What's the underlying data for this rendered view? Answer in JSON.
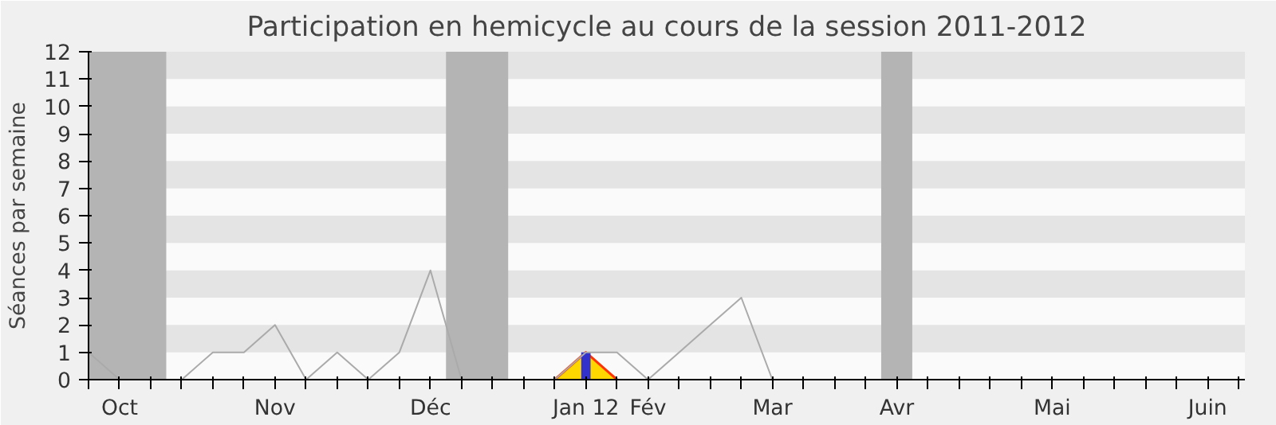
{
  "chart_data": {
    "type": "line",
    "title": "Participation en hemicycle au cours de la session 2011-2012",
    "ylabel": "Séances par semaine",
    "categories": [
      null,
      "Oct",
      null,
      null,
      null,
      null,
      "Nov",
      null,
      null,
      null,
      null,
      "Déc",
      null,
      null,
      null,
      null,
      "Jan 12",
      null,
      "Fév",
      null,
      null,
      null,
      "Mar",
      null,
      null,
      null,
      "Avr",
      null,
      null,
      null,
      null,
      "Mai",
      null,
      null,
      null,
      null,
      "Juin",
      null
    ],
    "ylim": [
      0,
      12
    ],
    "yticks": [
      0,
      1,
      2,
      3,
      4,
      5,
      6,
      7,
      8,
      9,
      10,
      11,
      12
    ],
    "marker": "none",
    "line_style": "solid",
    "series": [
      {
        "color": "#aaaaaa",
        "values": [
          1,
          0,
          null,
          0,
          1,
          1,
          2,
          0,
          1,
          0,
          1,
          4,
          0,
          null,
          null,
          0,
          1,
          1,
          0,
          1,
          2,
          3,
          0,
          null,
          null,
          null,
          null,
          null,
          null,
          null,
          null,
          null,
          null,
          null,
          null,
          null,
          null,
          null
        ]
      },
      {
        "type": "area",
        "color": "#ffd700",
        "values": [
          null,
          null,
          null,
          null,
          null,
          null,
          null,
          null,
          null,
          null,
          null,
          null,
          null,
          null,
          null,
          0,
          1,
          0,
          null,
          null,
          null,
          null,
          null,
          null,
          null,
          null,
          null,
          null,
          null,
          null,
          null,
          null,
          null,
          null,
          null,
          null,
          null,
          null
        ]
      },
      {
        "type": "bar",
        "color": "#3333cc",
        "values": [
          null,
          null,
          null,
          null,
          null,
          null,
          null,
          null,
          null,
          null,
          null,
          null,
          null,
          null,
          null,
          null,
          1,
          null,
          null,
          null,
          null,
          null,
          null,
          null,
          null,
          null,
          null,
          null,
          null,
          null,
          null,
          null,
          null,
          null,
          null,
          null,
          null,
          null
        ]
      }
    ]
  }
}
